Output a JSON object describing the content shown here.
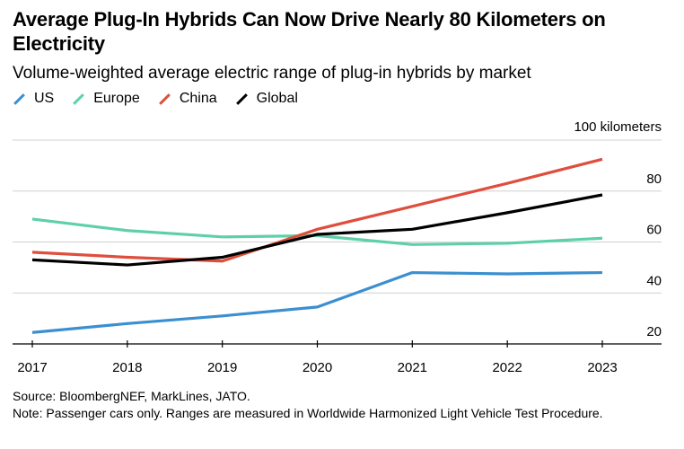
{
  "title": "Average Plug-In Hybrids Can Now Drive Nearly 80 Kilometers on Electricity",
  "subtitle": "Volume-weighted average electric range of plug-in hybrids by market",
  "source": "Source: BloombergNEF, MarkLines, JATO.",
  "note": "Note: Passenger cars only. Ranges are measured in Worldwide Harmonized Light Vehicle Test Procedure.",
  "chart_data": {
    "type": "line",
    "title": "Average Plug-In Hybrids Can Now Drive Nearly 80 Kilometers on Electricity",
    "subtitle": "Volume-weighted average electric range of plug-in hybrids by market",
    "xlabel": "",
    "ylabel": "kilometers",
    "y_top_label": "100 kilometers",
    "ylim": [
      20,
      100
    ],
    "yticks": [
      20,
      40,
      60,
      80
    ],
    "x": [
      "2017",
      "2018",
      "2019",
      "2020",
      "2021",
      "2022",
      "2023"
    ],
    "grid": true,
    "legend_position": "top-left",
    "series": [
      {
        "name": "US",
        "color": "#3b8fd0",
        "values": [
          24.5,
          28,
          31,
          34.5,
          48,
          47.5,
          48
        ]
      },
      {
        "name": "Europe",
        "color": "#5ed0a8",
        "values": [
          69,
          64.5,
          62,
          62.5,
          59,
          59.5,
          61.5
        ]
      },
      {
        "name": "China",
        "color": "#df4e3c",
        "values": [
          56,
          54,
          52.5,
          65,
          74,
          83,
          92.5
        ]
      },
      {
        "name": "Global",
        "color": "#000000",
        "values": [
          53,
          51,
          54,
          63,
          65,
          71.5,
          78.5
        ]
      }
    ]
  }
}
